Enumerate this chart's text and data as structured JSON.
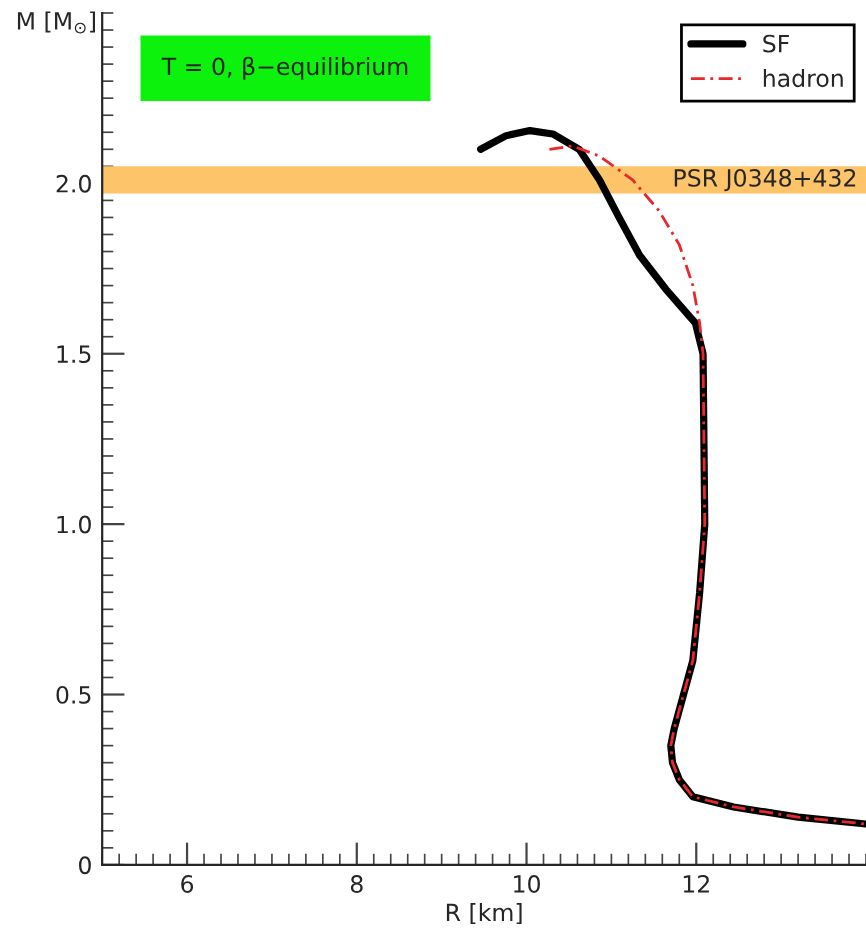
{
  "chart_data": {
    "type": "line",
    "xlabel": "R [km]",
    "ylabel": "M [M$_{⊙}$]",
    "xlim": [
      5,
      14
    ],
    "ylim": [
      0,
      2.5
    ],
    "xticks": [
      6,
      8,
      10,
      12
    ],
    "yticks": [
      0,
      {
        "value": 0.5,
        "label": "0.5"
      },
      {
        "value": 1.0,
        "label": "1.0"
      },
      {
        "value": 1.5,
        "label": "1.5"
      },
      {
        "value": 2.0,
        "label": "2.0"
      }
    ],
    "grid": false,
    "legend": "top right",
    "marker": "none",
    "annotations": [
      "T = 0, β−equilibrium"
    ],
    "bands": [
      {
        "axis": "y",
        "from": 1.97,
        "to": 2.05,
        "label": "PSR J0348+432",
        "color": "#fdc46a"
      }
    ],
    "series": [
      {
        "name": "SF",
        "color": "#000000",
        "line_style": "solid",
        "x": [
          9.46,
          9.76,
          10.04,
          10.31,
          10.62,
          10.86,
          11.09,
          11.33,
          11.64,
          11.99,
          12.08,
          12.1,
          12.04,
          11.96,
          11.85,
          11.74,
          11.7,
          11.72,
          11.8,
          11.96,
          12.44,
          13.2,
          14.0
        ],
        "values": [
          2.1,
          2.14,
          2.155,
          2.145,
          2.1,
          2.01,
          1.9,
          1.79,
          1.69,
          1.59,
          1.5,
          1.0,
          0.8,
          0.6,
          0.5,
          0.4,
          0.35,
          0.3,
          0.25,
          0.2,
          0.17,
          0.14,
          0.12
        ]
      },
      {
        "name": "hadron",
        "color": "#e8282b",
        "line_style": "dashed",
        "x": [
          10.27,
          10.54,
          10.86,
          11.25,
          11.56,
          11.8,
          11.96,
          12.04,
          12.08,
          12.1,
          12.04,
          11.96,
          11.85,
          11.74,
          11.7,
          11.72,
          11.8,
          11.96,
          12.44,
          13.2,
          14.0
        ],
        "values": [
          2.1,
          2.11,
          2.08,
          2.01,
          1.92,
          1.82,
          1.7,
          1.59,
          1.5,
          1.0,
          0.8,
          0.6,
          0.5,
          0.4,
          0.35,
          0.3,
          0.25,
          0.2,
          0.17,
          0.14,
          0.12
        ]
      }
    ]
  }
}
